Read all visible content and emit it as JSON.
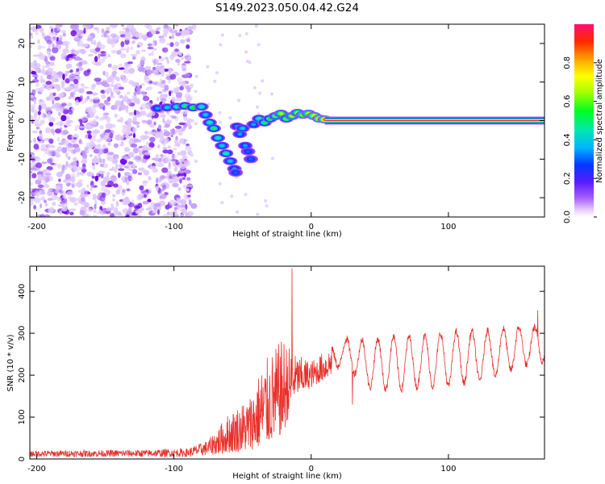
{
  "title": "S149.2023.050.04.42.G24",
  "chart_data": [
    {
      "type": "heatmap",
      "xlabel": "Height of straight line (km)",
      "ylabel": "Frequency (Hz)",
      "xlim": [
        -205,
        170
      ],
      "ylim": [
        -25,
        25
      ],
      "xticks": [
        -200,
        -100,
        0,
        100
      ],
      "yticks": [
        -20,
        -10,
        0,
        10,
        20
      ],
      "colormap": [
        "#e9d6ff",
        "#c9a3ff",
        "#8a2be2",
        "#3a1dff",
        "#0045ff",
        "#00c8ff",
        "#00e0a0",
        "#00ff00",
        "#b0ff00",
        "#ffff00",
        "#ffb000",
        "#ff3000",
        "#ff0050",
        "#ff0078"
      ],
      "colorbar": {
        "label": "Normalized spectral amplitude",
        "range": [
          0,
          1
        ],
        "ticks": [
          "0.0",
          "0.2",
          "0.4",
          "0.6",
          "0.8"
        ],
        "tick_values": [
          0.0,
          0.2,
          0.4,
          0.6,
          0.8
        ]
      },
      "ridge": [
        {
          "x": -112,
          "y": 3.2,
          "a": 0.35
        },
        {
          "x": -105,
          "y": 3.4,
          "a": 0.4
        },
        {
          "x": -98,
          "y": 3.6,
          "a": 0.45
        },
        {
          "x": -92,
          "y": 3.8,
          "a": 0.5
        },
        {
          "x": -86,
          "y": 3.4,
          "a": 0.55
        },
        {
          "x": -80,
          "y": 3.6,
          "a": 0.45
        },
        {
          "x": -77,
          "y": 1.5,
          "a": 0.4
        },
        {
          "x": -74,
          "y": -0.5,
          "a": 0.45
        },
        {
          "x": -71,
          "y": -2.0,
          "a": 0.5
        },
        {
          "x": -68,
          "y": -4.5,
          "a": 0.45
        },
        {
          "x": -65,
          "y": -6.5,
          "a": 0.4
        },
        {
          "x": -62,
          "y": -8.5,
          "a": 0.45
        },
        {
          "x": -59,
          "y": -10.5,
          "a": 0.4
        },
        {
          "x": -56,
          "y": -12.5,
          "a": 0.35
        },
        {
          "x": -55,
          "y": -13.5,
          "a": 0.3
        },
        {
          "x": -54,
          "y": -1.5,
          "a": 0.35
        },
        {
          "x": -52,
          "y": -3.5,
          "a": 0.35
        },
        {
          "x": -50,
          "y": -2.0,
          "a": 0.4
        },
        {
          "x": -48,
          "y": -6.5,
          "a": 0.35
        },
        {
          "x": -46,
          "y": -8.0,
          "a": 0.3
        },
        {
          "x": -44,
          "y": -10.0,
          "a": 0.3
        },
        {
          "x": -42,
          "y": -1.0,
          "a": 0.35
        },
        {
          "x": -38,
          "y": 0.5,
          "a": 0.45
        },
        {
          "x": -34,
          "y": -0.5,
          "a": 0.5
        },
        {
          "x": -30,
          "y": 0.5,
          "a": 0.55
        },
        {
          "x": -26,
          "y": 1.2,
          "a": 0.6
        },
        {
          "x": -22,
          "y": 1.8,
          "a": 0.65
        },
        {
          "x": -18,
          "y": 0.5,
          "a": 0.6
        },
        {
          "x": -14,
          "y": 1.2,
          "a": 0.65
        },
        {
          "x": -10,
          "y": 2.0,
          "a": 0.65
        },
        {
          "x": -6,
          "y": 1.5,
          "a": 0.7
        },
        {
          "x": -2,
          "y": 1.8,
          "a": 0.7
        },
        {
          "x": 2,
          "y": 1.2,
          "a": 0.75
        },
        {
          "x": 6,
          "y": 0.5,
          "a": 0.8
        },
        {
          "x": 10,
          "y": 0.3,
          "a": 0.85
        }
      ],
      "carrier": {
        "x_start": 10,
        "x_end": 170,
        "y": 0
      }
    },
    {
      "type": "line",
      "xlabel": "Height of straight line (km)",
      "ylabel": "SNR (10 * v/v)",
      "xlim": [
        -205,
        170
      ],
      "ylim": [
        0,
        460
      ],
      "xticks": [
        -200,
        -100,
        0,
        100
      ],
      "yticks": [
        0,
        100,
        200,
        300,
        400
      ],
      "color": "#e8302a",
      "envelope": [
        {
          "x": -205,
          "lo": 5,
          "hi": 20
        },
        {
          "x": -120,
          "lo": 5,
          "hi": 22
        },
        {
          "x": -90,
          "lo": 5,
          "hi": 25
        },
        {
          "x": -75,
          "lo": 8,
          "hi": 45
        },
        {
          "x": -60,
          "lo": 15,
          "hi": 110
        },
        {
          "x": -45,
          "lo": 20,
          "hi": 150
        },
        {
          "x": -35,
          "lo": 30,
          "hi": 230
        },
        {
          "x": -20,
          "lo": 60,
          "hi": 290
        },
        {
          "x": -12,
          "lo": 150,
          "hi": 250
        },
        {
          "x": 0,
          "lo": 170,
          "hi": 235
        },
        {
          "x": 15,
          "lo": 200,
          "hi": 270
        },
        {
          "x": 25,
          "lo": 220,
          "hi": 290
        },
        {
          "x": 40,
          "lo": 150,
          "hi": 290
        },
        {
          "x": 60,
          "lo": 140,
          "hi": 300
        },
        {
          "x": 80,
          "lo": 150,
          "hi": 300
        },
        {
          "x": 100,
          "lo": 150,
          "hi": 310
        },
        {
          "x": 130,
          "lo": 170,
          "hi": 315
        },
        {
          "x": 150,
          "lo": 200,
          "hi": 320
        },
        {
          "x": 170,
          "lo": 220,
          "hi": 320
        }
      ],
      "peaks": [
        {
          "x": -14,
          "y": 455
        },
        {
          "x": 30,
          "y": 130
        },
        {
          "x": 165,
          "y": 355
        }
      ]
    }
  ]
}
